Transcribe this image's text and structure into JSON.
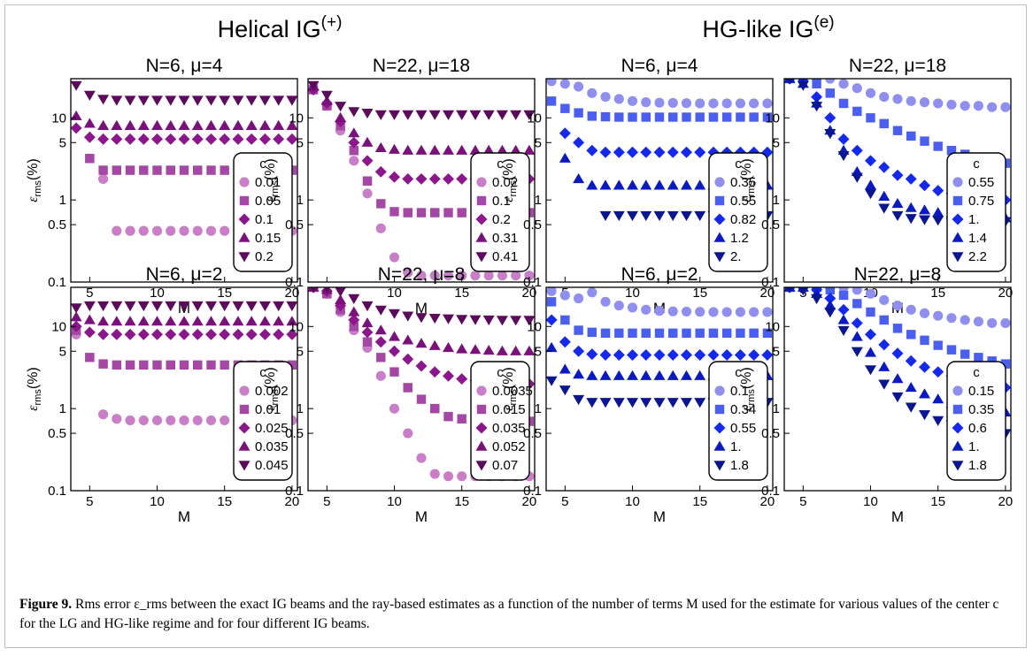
{
  "headers": {
    "left": {
      "text": "Helical IG",
      "sup": "(+)"
    },
    "right": {
      "text": "HG-like IG",
      "sup": "(e)"
    }
  },
  "axis_common": {
    "xlabel": "M",
    "ylabel_main": "ε",
    "ylabel_sub": "rms",
    "ylabel_tail": "(%)",
    "xticks": [
      5,
      10,
      15,
      20
    ],
    "yticks": [
      0.1,
      0.5,
      1,
      5,
      10
    ],
    "ytick_labels": [
      "0.1",
      "0.5",
      "1",
      "5",
      "10"
    ],
    "xlim": [
      3.6,
      20.4
    ],
    "ylim": [
      0.1,
      30
    ],
    "yscale": "log",
    "marker_order": [
      "circle",
      "square",
      "diamond",
      "triangle-up",
      "triangle-down"
    ],
    "legend_title": "c",
    "legend_position": "right"
  },
  "colors": {
    "purple": [
      "#c87fc8",
      "#a548a5",
      "#8c178c",
      "#7a107a",
      "#5c0a5c"
    ],
    "blue": [
      "#8f8ff0",
      "#4a5ff0",
      "#1428ee",
      "#0a1ac0",
      "#0a1590"
    ]
  },
  "caption": {
    "label": "Figure 9.",
    "text": "Rms error ε_rms between the exact IG beams and the ray-based estimates as a function of the number of terms M used for the estimate for various values of the center c for the LG and HG-like regime and for four different IG beams."
  },
  "chart_data": [
    {
      "type": "scatter",
      "title": "N=6, μ=4",
      "palette": "purple",
      "yscale": "log",
      "x_start": 4,
      "series": [
        {
          "name": "0.01",
          "values": [
            null,
            null,
            1.8,
            0.42,
            0.42,
            0.42,
            0.42,
            0.42,
            0.42,
            0.42,
            0.42,
            0.42,
            0.42,
            0.42,
            0.42,
            0.42,
            0.42
          ]
        },
        {
          "name": "0.05",
          "values": [
            null,
            3.2,
            2.3,
            2.3,
            2.3,
            2.3,
            2.3,
            2.3,
            2.3,
            2.3,
            2.3,
            2.3,
            2.3,
            2.3,
            2.3,
            2.3,
            2.3
          ]
        },
        {
          "name": "0.1",
          "values": [
            7.5,
            5.8,
            5.5,
            5.5,
            5.5,
            5.5,
            5.5,
            5.5,
            5.5,
            5.5,
            5.5,
            5.5,
            5.5,
            5.5,
            5.5,
            5.5,
            5.5
          ]
        },
        {
          "name": "0.15",
          "values": [
            10.5,
            8.5,
            8,
            8,
            8,
            8,
            8,
            8,
            8,
            8,
            8,
            8,
            8,
            8,
            8,
            8,
            8
          ]
        },
        {
          "name": "0.2",
          "values": [
            25,
            19,
            17,
            16.5,
            16.5,
            16.5,
            16.5,
            16.5,
            16.5,
            16.5,
            16.5,
            16.5,
            16.5,
            16.5,
            16.5,
            16.5,
            16.5
          ]
        }
      ]
    },
    {
      "type": "scatter",
      "title": "N=22, μ=18",
      "palette": "purple",
      "yscale": "log",
      "x_start": 4,
      "series": [
        {
          "name": "0.02",
          "values": [
            22,
            14,
            7,
            3,
            1.2,
            0.45,
            0.2,
            0.13,
            0.12,
            0.12,
            0.12,
            0.12,
            0.12,
            0.12,
            0.12,
            0.12,
            0.12
          ]
        },
        {
          "name": "0.1",
          "values": [
            22,
            14,
            8,
            4,
            1.7,
            0.9,
            0.72,
            0.7,
            0.7,
            0.7,
            0.7,
            0.7,
            0.7,
            0.7,
            0.7,
            0.7,
            0.7
          ]
        },
        {
          "name": "0.2",
          "values": [
            22,
            15,
            9,
            5,
            3,
            2.2,
            1.9,
            1.8,
            1.8,
            1.8,
            1.8,
            1.8,
            1.8,
            1.8,
            1.8,
            1.8,
            1.8
          ]
        },
        {
          "name": "0.31",
          "values": [
            24,
            16,
            10,
            6.5,
            5,
            4.3,
            4.1,
            4,
            4,
            4,
            4,
            4,
            4,
            4,
            4,
            4,
            4
          ]
        },
        {
          "name": "0.41",
          "values": [
            25,
            19,
            14,
            12,
            11.5,
            11,
            11,
            11,
            11,
            11,
            11,
            11,
            11,
            11,
            11,
            11,
            11
          ]
        }
      ]
    },
    {
      "type": "scatter",
      "title": "N=6, μ=4",
      "palette": "blue",
      "yscale": "log",
      "x_start": 4,
      "series": [
        {
          "name": "0.35",
          "values": [
            28,
            26,
            24,
            20,
            18,
            17,
            16,
            15.5,
            15.3,
            15.2,
            15.1,
            15,
            15,
            15,
            15,
            15,
            15
          ]
        },
        {
          "name": "0.55",
          "values": [
            16,
            13,
            11.5,
            10.5,
            10.3,
            10.2,
            10.2,
            10.2,
            10.2,
            10.2,
            10.2,
            10.2,
            10.2,
            10.2,
            10.2,
            10.2,
            10.2
          ]
        },
        {
          "name": "0.82",
          "values": [
            null,
            6.5,
            5,
            4,
            3.8,
            3.8,
            3.8,
            3.8,
            3.8,
            3.8,
            3.8,
            3.8,
            3.8,
            3.8,
            3.8,
            3.8,
            3.8
          ]
        },
        {
          "name": "1.2",
          "values": [
            null,
            3.2,
            1.8,
            1.5,
            1.5,
            1.5,
            1.5,
            1.5,
            1.5,
            1.5,
            1.5,
            1.5,
            1.5,
            1.5,
            1.5,
            1.5,
            1.5
          ]
        },
        {
          "name": "2.",
          "values": [
            null,
            null,
            null,
            null,
            0.65,
            0.65,
            0.65,
            0.65,
            0.65,
            0.65,
            0.65,
            0.65,
            0.65,
            0.65,
            0.65,
            0.65,
            0.65
          ]
        }
      ]
    },
    {
      "type": "scatter",
      "title": "N=22, μ=18",
      "palette": "blue",
      "yscale": "log",
      "x_start": 4,
      "series": [
        {
          "name": "0.55",
          "values": [
            30,
            30,
            30,
            30,
            26,
            23,
            20,
            18,
            17,
            16,
            15.5,
            15,
            14.5,
            14,
            14,
            13.5,
            13.5
          ]
        },
        {
          "name": "0.75",
          "values": [
            30,
            30,
            26,
            20,
            15,
            12,
            10,
            8.5,
            7,
            6,
            5.2,
            4.5,
            4,
            3.6,
            3.3,
            3,
            2.8
          ]
        },
        {
          "name": "1.",
          "values": [
            30,
            28,
            18,
            10,
            5.5,
            4,
            3,
            2.5,
            2,
            1.8,
            1.5,
            1.3,
            1.2,
            1.1,
            1.1,
            1.05,
            1
          ]
        },
        {
          "name": "1.4",
          "values": [
            30,
            26,
            15,
            7,
            4,
            2.2,
            1.5,
            1.1,
            0.9,
            0.8,
            0.75,
            0.7,
            0.65,
            0.65,
            0.62,
            0.6,
            0.6
          ]
        },
        {
          "name": "2.2",
          "values": [
            30,
            25,
            14,
            6.5,
            3.5,
            1.9,
            1.2,
            0.8,
            0.65,
            0.6,
            0.58,
            0.57,
            0.56,
            0.56,
            0.55,
            0.55,
            0.55
          ]
        }
      ]
    },
    {
      "type": "scatter",
      "title": "N=6, μ=2",
      "palette": "purple",
      "yscale": "log",
      "x_start": 4,
      "series": [
        {
          "name": "0.002",
          "values": [
            8,
            null,
            0.85,
            0.75,
            0.72,
            0.72,
            0.72,
            0.72,
            0.72,
            0.72,
            0.72,
            0.72,
            0.72,
            0.72,
            0.72,
            0.72,
            0.72
          ]
        },
        {
          "name": "0.01",
          "values": [
            9,
            4.2,
            3.5,
            3.4,
            3.4,
            3.4,
            3.4,
            3.4,
            3.4,
            3.4,
            3.4,
            3.4,
            3.4,
            3.4,
            3.4,
            3.4,
            3.4
          ]
        },
        {
          "name": "0.025",
          "values": [
            10,
            8.5,
            8,
            8,
            8,
            8,
            8,
            8,
            8,
            8,
            8,
            8,
            8,
            8,
            8,
            8,
            8
          ]
        },
        {
          "name": "0.035",
          "values": [
            13,
            12,
            11.5,
            11.5,
            11.5,
            11.5,
            11.5,
            11.5,
            11.5,
            11.5,
            11.5,
            11.5,
            11.5,
            11.5,
            11.5,
            11.5,
            11.5
          ]
        },
        {
          "name": "0.045",
          "values": [
            17,
            18,
            18,
            18,
            18,
            18,
            18,
            18,
            18,
            18,
            18,
            18,
            18,
            18,
            18,
            18,
            18
          ]
        }
      ]
    },
    {
      "type": "scatter",
      "title": "N=22, μ=8",
      "palette": "purple",
      "yscale": "log",
      "x_start": 4,
      "series": [
        {
          "name": "0.0035",
          "values": [
            30,
            25,
            15,
            9,
            5.5,
            2.5,
            1,
            0.5,
            0.25,
            0.16,
            0.15,
            0.15,
            0.15,
            0.15,
            0.15,
            0.15,
            0.15
          ]
        },
        {
          "name": "0.015",
          "values": [
            30,
            25,
            16,
            10,
            6.5,
            4.2,
            2.8,
            1.8,
            1.3,
            1,
            0.8,
            0.75,
            0.7,
            0.7,
            0.7,
            0.7,
            0.7
          ]
        },
        {
          "name": "0.035",
          "values": [
            30,
            27,
            18,
            12,
            8.5,
            6.5,
            5,
            4,
            3.3,
            2.8,
            2.5,
            2.3,
            2.2,
            2.1,
            2.1,
            2,
            2
          ]
        },
        {
          "name": "0.052",
          "values": [
            30,
            28,
            21,
            15,
            11,
            9,
            7.5,
            6.8,
            6.2,
            5.8,
            5.5,
            5.3,
            5.2,
            5.1,
            5,
            5,
            5
          ]
        },
        {
          "name": "0.07",
          "values": [
            30,
            30,
            27,
            22,
            18,
            16,
            14.5,
            13.5,
            13,
            12.7,
            12.5,
            12.3,
            12.2,
            12.1,
            12,
            12,
            12
          ]
        }
      ]
    },
    {
      "type": "scatter",
      "title": "N=6, μ=2",
      "palette": "blue",
      "yscale": "log",
      "x_start": 4,
      "series": [
        {
          "name": "0.1",
          "values": [
            27,
            24,
            22,
            26,
            20,
            18,
            17,
            16,
            15.5,
            15.3,
            15.2,
            15.1,
            15,
            15,
            15,
            15,
            15
          ]
        },
        {
          "name": "0.34",
          "values": [
            20,
            12,
            9,
            8.5,
            8.3,
            8.3,
            8.3,
            8.3,
            8.3,
            8.3,
            8.3,
            8.3,
            8.3,
            8.3,
            8.3,
            8.3,
            8.3
          ]
        },
        {
          "name": "0.55",
          "values": [
            12,
            6.5,
            5,
            4.6,
            4.5,
            4.5,
            4.5,
            4.5,
            4.5,
            4.5,
            4.5,
            4.5,
            4.5,
            4.5,
            4.5,
            4.5,
            4.5
          ]
        },
        {
          "name": "1.",
          "values": [
            5.5,
            3,
            2.6,
            2.5,
            2.5,
            2.5,
            2.5,
            2.5,
            2.5,
            2.5,
            2.5,
            2.5,
            2.5,
            2.5,
            2.5,
            2.5,
            2.5
          ]
        },
        {
          "name": "1.8",
          "values": [
            2.2,
            1.7,
            1.3,
            1.2,
            1.2,
            1.2,
            1.2,
            1.2,
            1.2,
            1.2,
            1.2,
            1.2,
            1.2,
            1.2,
            1.2,
            1.2,
            1.2
          ]
        }
      ]
    },
    {
      "type": "scatter",
      "title": "N=22, μ=8",
      "palette": "blue",
      "yscale": "log",
      "x_start": 4,
      "series": [
        {
          "name": "0.15",
          "values": [
            30,
            30,
            30,
            30,
            30,
            28,
            25,
            21,
            18,
            16,
            14.5,
            13.5,
            12.7,
            12,
            11.5,
            11,
            11
          ]
        },
        {
          "name": "0.35",
          "values": [
            30,
            30,
            30,
            28,
            24,
            19,
            15,
            12,
            9.5,
            8,
            6.8,
            5.9,
            5.2,
            4.6,
            4.2,
            3.8,
            3.5
          ]
        },
        {
          "name": "0.6",
          "values": [
            30,
            30,
            28,
            22,
            16,
            11,
            8,
            6,
            4.7,
            3.8,
            3.2,
            2.8,
            2.5,
            2.2,
            2,
            1.9,
            1.8
          ]
        },
        {
          "name": "1.",
          "values": [
            30,
            30,
            25,
            18,
            12,
            7.5,
            4.8,
            3.2,
            2.3,
            1.8,
            1.5,
            1.3,
            1.15,
            1.05,
            1,
            0.95,
            0.9
          ]
        },
        {
          "name": "1.8",
          "values": [
            30,
            28,
            22,
            15,
            9,
            5,
            3,
            2,
            1.4,
            1.05,
            0.85,
            0.72,
            0.64,
            0.58,
            0.55,
            0.52,
            0.5
          ]
        }
      ]
    }
  ]
}
